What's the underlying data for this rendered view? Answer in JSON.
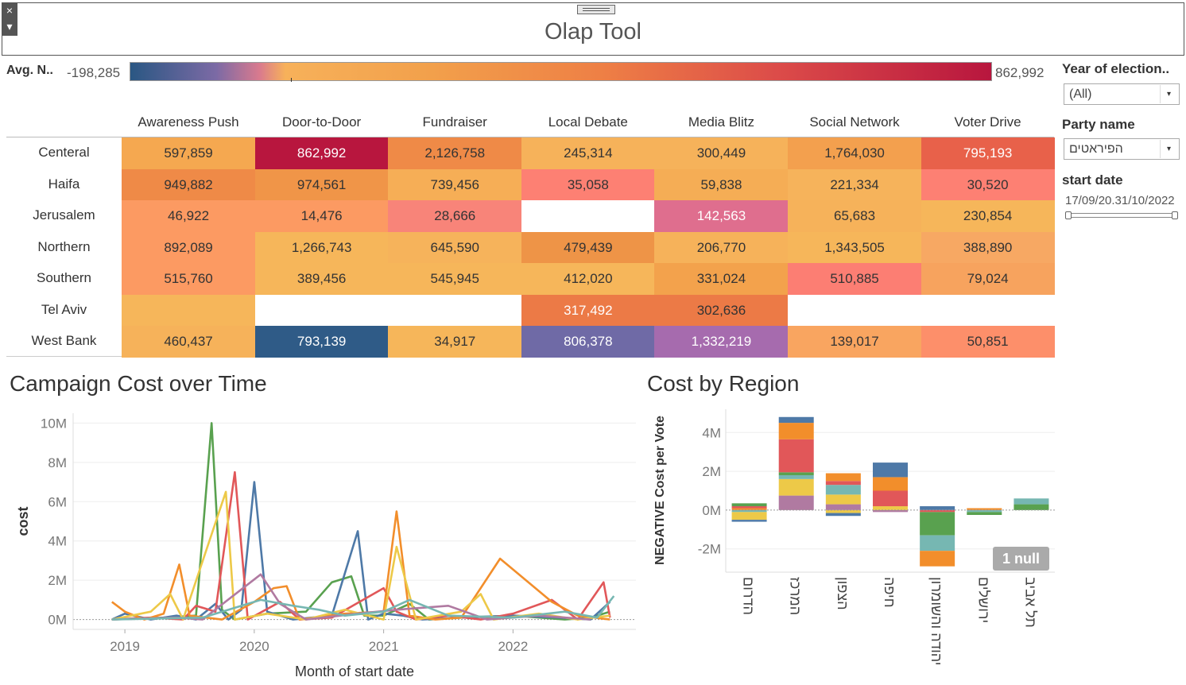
{
  "window": {
    "title": "Olap Tool",
    "close_glyph": "×",
    "menu_glyph": "▾"
  },
  "legend": {
    "label": "Avg. N..",
    "min": "-198,285",
    "max": "862,992"
  },
  "filters": {
    "year": {
      "title": "Year of election..",
      "value": "(All)"
    },
    "party": {
      "title": "Party name",
      "value": "הפיראטים"
    },
    "start_date": {
      "title": "start date",
      "range": "17/09/20.31/10/2022"
    },
    "dropdown_glyph": "▾"
  },
  "heatmap": {
    "columns": [
      "Awareness Push",
      "Door-to-Door",
      "Fundraiser",
      "Local Debate",
      "Media Blitz",
      "Social Network",
      "Voter Drive"
    ],
    "rows": [
      {
        "label": "Centeral",
        "cells": [
          {
            "v": "597,859",
            "c": "#f5a850"
          },
          {
            "v": "862,992",
            "c": "#b8163e",
            "light": true
          },
          {
            "v": "2,126,758",
            "c": "#ef8a47"
          },
          {
            "v": "245,314",
            "c": "#f6b25a"
          },
          {
            "v": "300,449",
            "c": "#f6b25a"
          },
          {
            "v": "1,764,030",
            "c": "#f3a04e"
          },
          {
            "v": "795,193",
            "c": "#e8614a",
            "light": true
          }
        ]
      },
      {
        "label": "Haifa",
        "cells": [
          {
            "v": "949,882",
            "c": "#ef8a47"
          },
          {
            "v": "974,561",
            "c": "#f09548"
          },
          {
            "v": "739,456",
            "c": "#f6ae56"
          },
          {
            "v": "35,058",
            "c": "#fd8073"
          },
          {
            "v": "59,838",
            "c": "#f5ad55"
          },
          {
            "v": "221,334",
            "c": "#f6b35b"
          },
          {
            "v": "30,520",
            "c": "#fd8073"
          }
        ]
      },
      {
        "label": "Jerusalem",
        "cells": [
          {
            "v": "46,922",
            "c": "#fc9a62"
          },
          {
            "v": "14,476",
            "c": "#fc9a62"
          },
          {
            "v": "28,666",
            "c": "#f88479"
          },
          {
            "v": "",
            "c": "#ffffff"
          },
          {
            "v": "142,563",
            "c": "#df6e8e",
            "light": true
          },
          {
            "v": "65,683",
            "c": "#f6b25a"
          },
          {
            "v": "230,854",
            "c": "#f6b65a"
          }
        ]
      },
      {
        "label": "Northern",
        "cells": [
          {
            "v": "892,089",
            "c": "#fc9a62"
          },
          {
            "v": "1,266,743",
            "c": "#f6b65a"
          },
          {
            "v": "645,590",
            "c": "#f6b35b"
          },
          {
            "v": "479,439",
            "c": "#ee9447"
          },
          {
            "v": "206,770",
            "c": "#f6b25a"
          },
          {
            "v": "1,343,505",
            "c": "#f6b65a"
          },
          {
            "v": "388,890",
            "c": "#f7a863"
          }
        ]
      },
      {
        "label": "Southern",
        "cells": [
          {
            "v": "515,760",
            "c": "#fc9a62"
          },
          {
            "v": "389,456",
            "c": "#f6b65a"
          },
          {
            "v": "545,945",
            "c": "#f6b65a"
          },
          {
            "v": "412,020",
            "c": "#f6b65a"
          },
          {
            "v": "331,024",
            "c": "#f3a24c"
          },
          {
            "v": "510,885",
            "c": "#fc7e73"
          },
          {
            "v": "79,024",
            "c": "#f7a35e"
          }
        ]
      },
      {
        "label": "Tel Aviv",
        "cells": [
          {
            "v": "",
            "c": "#f6b65a"
          },
          {
            "v": "",
            "c": "#ffffff"
          },
          {
            "v": "",
            "c": "#ffffff"
          },
          {
            "v": "317,492",
            "c": "#ec7a46",
            "light": true
          },
          {
            "v": "302,636",
            "c": "#ec7a46"
          },
          {
            "v": "",
            "c": "#ffffff"
          },
          {
            "v": "",
            "c": "#ffffff"
          }
        ]
      },
      {
        "label": "West Bank",
        "cells": [
          {
            "v": "460,437",
            "c": "#f6b25a"
          },
          {
            "v": "793,139",
            "c": "#2f5b87",
            "light": true
          },
          {
            "v": "34,917",
            "c": "#f6b65a"
          },
          {
            "v": "806,378",
            "c": "#6f6aa6",
            "light": true
          },
          {
            "v": "1,332,219",
            "c": "#a66bae",
            "light": true
          },
          {
            "v": "139,017",
            "c": "#f9a560"
          },
          {
            "v": "50,851",
            "c": "#fd8f6a"
          }
        ]
      }
    ]
  },
  "chart_data": [
    {
      "type": "line",
      "title": "Campaign Cost over Time",
      "xlabel": "Month of start date",
      "ylabel": "cost",
      "xlim": [
        2018.6,
        2022.95
      ],
      "ylim": [
        -500000,
        10500000
      ],
      "yticks": [
        {
          "v": 0,
          "l": "0M"
        },
        {
          "v": 2000000,
          "l": "2M"
        },
        {
          "v": 4000000,
          "l": "4M"
        },
        {
          "v": 6000000,
          "l": "6M"
        },
        {
          "v": 8000000,
          "l": "8M"
        },
        {
          "v": 10000000,
          "l": "10M"
        }
      ],
      "xticks": [
        {
          "v": 2019,
          "l": "2019"
        },
        {
          "v": 2020,
          "l": "2020"
        },
        {
          "v": 2021,
          "l": "2021"
        },
        {
          "v": 2022,
          "l": "2022"
        }
      ],
      "series": [
        {
          "color": "#59a14f",
          "points": [
            [
              2018.9,
              0
            ],
            [
              2019.3,
              100000
            ],
            [
              2019.55,
              200000
            ],
            [
              2019.67,
              10000000
            ],
            [
              2019.75,
              500000
            ],
            [
              2019.85,
              0
            ],
            [
              2020.1,
              300000
            ],
            [
              2020.4,
              400000
            ],
            [
              2020.6,
              1900000
            ],
            [
              2020.75,
              2200000
            ],
            [
              2020.85,
              200000
            ],
            [
              2021.0,
              200000
            ],
            [
              2021.2,
              800000
            ],
            [
              2021.35,
              0
            ],
            [
              2021.6,
              100000
            ],
            [
              2022.0,
              200000
            ],
            [
              2022.4,
              0
            ],
            [
              2022.6,
              100000
            ],
            [
              2022.75,
              400000
            ]
          ]
        },
        {
          "color": "#4e79a7",
          "points": [
            [
              2018.9,
              0
            ],
            [
              2019.0,
              300000
            ],
            [
              2019.2,
              0
            ],
            [
              2019.4,
              200000
            ],
            [
              2019.55,
              0
            ],
            [
              2019.7,
              800000
            ],
            [
              2019.8,
              0
            ],
            [
              2019.9,
              500000
            ],
            [
              2020.0,
              7000000
            ],
            [
              2020.1,
              400000
            ],
            [
              2020.3,
              0
            ],
            [
              2020.6,
              200000
            ],
            [
              2020.8,
              4500000
            ],
            [
              2020.88,
              0
            ],
            [
              2021.0,
              300000
            ],
            [
              2021.15,
              200000
            ],
            [
              2021.3,
              0
            ],
            [
              2021.6,
              100000
            ],
            [
              2022.0,
              200000
            ],
            [
              2022.35,
              100000
            ],
            [
              2022.6,
              0
            ],
            [
              2022.75,
              900000
            ]
          ]
        },
        {
          "color": "#e15759",
          "points": [
            [
              2018.9,
              0
            ],
            [
              2019.2,
              100000
            ],
            [
              2019.45,
              0
            ],
            [
              2019.55,
              700000
            ],
            [
              2019.7,
              400000
            ],
            [
              2019.85,
              7500000
            ],
            [
              2019.95,
              0
            ],
            [
              2020.2,
              900000
            ],
            [
              2020.35,
              0
            ],
            [
              2020.6,
              100000
            ],
            [
              2021.0,
              1600000
            ],
            [
              2021.1,
              400000
            ],
            [
              2021.25,
              0
            ],
            [
              2021.5,
              200000
            ],
            [
              2021.75,
              0
            ],
            [
              2022.0,
              300000
            ],
            [
              2022.3,
              1000000
            ],
            [
              2022.5,
              0
            ],
            [
              2022.7,
              1900000
            ],
            [
              2022.75,
              100000
            ]
          ]
        },
        {
          "color": "#f28e2b",
          "points": [
            [
              2018.9,
              900000
            ],
            [
              2019.0,
              400000
            ],
            [
              2019.15,
              0
            ],
            [
              2019.3,
              300000
            ],
            [
              2019.42,
              2800000
            ],
            [
              2019.5,
              200000
            ],
            [
              2019.75,
              0
            ],
            [
              2020.0,
              900000
            ],
            [
              2020.15,
              1600000
            ],
            [
              2020.25,
              1700000
            ],
            [
              2020.35,
              0
            ],
            [
              2020.7,
              300000
            ],
            [
              2021.0,
              400000
            ],
            [
              2021.1,
              5500000
            ],
            [
              2021.2,
              200000
            ],
            [
              2021.4,
              0
            ],
            [
              2021.6,
              100000
            ],
            [
              2021.9,
              3100000
            ],
            [
              2022.3,
              900000
            ],
            [
              2022.5,
              200000
            ],
            [
              2022.75,
              0
            ]
          ]
        },
        {
          "color": "#edc948",
          "points": [
            [
              2018.9,
              0
            ],
            [
              2019.2,
              400000
            ],
            [
              2019.35,
              1300000
            ],
            [
              2019.45,
              0
            ],
            [
              2019.78,
              6500000
            ],
            [
              2019.85,
              0
            ],
            [
              2020.1,
              300000
            ],
            [
              2020.4,
              0
            ],
            [
              2020.7,
              500000
            ],
            [
              2021.0,
              0
            ],
            [
              2021.1,
              3700000
            ],
            [
              2021.25,
              0
            ],
            [
              2021.6,
              400000
            ],
            [
              2021.75,
              1300000
            ],
            [
              2021.85,
              0
            ],
            [
              2022.2,
              300000
            ],
            [
              2022.5,
              0
            ],
            [
              2022.75,
              200000
            ]
          ]
        },
        {
          "color": "#b07aa1",
          "points": [
            [
              2018.9,
              0
            ],
            [
              2019.4,
              100000
            ],
            [
              2019.6,
              0
            ],
            [
              2020.05,
              2300000
            ],
            [
              2020.2,
              800000
            ],
            [
              2020.4,
              0
            ],
            [
              2020.8,
              300000
            ],
            [
              2021.1,
              500000
            ],
            [
              2021.5,
              700000
            ],
            [
              2021.8,
              0
            ],
            [
              2022.2,
              200000
            ],
            [
              2022.6,
              0
            ]
          ]
        },
        {
          "color": "#76b7b2",
          "points": [
            [
              2018.9,
              0
            ],
            [
              2019.6,
              100000
            ],
            [
              2020.05,
              1000000
            ],
            [
              2020.3,
              700000
            ],
            [
              2020.5,
              500000
            ],
            [
              2020.7,
              200000
            ],
            [
              2021.0,
              400000
            ],
            [
              2021.2,
              1000000
            ],
            [
              2021.5,
              200000
            ],
            [
              2022.0,
              100000
            ],
            [
              2022.4,
              400000
            ],
            [
              2022.65,
              100000
            ],
            [
              2022.78,
              1200000
            ]
          ]
        }
      ]
    },
    {
      "type": "bar",
      "title": "Cost by Region",
      "ylabel": "NEGATIVE Cost per Vote",
      "ylim": [
        -3200000,
        5200000
      ],
      "yticks": [
        {
          "v": -2000000,
          "l": "-2M"
        },
        {
          "v": 0,
          "l": "0M"
        },
        {
          "v": 2000000,
          "l": "2M"
        },
        {
          "v": 4000000,
          "l": "4M"
        }
      ],
      "categories": [
        "הדרום",
        "המרכז",
        "הצפון",
        "חיפה",
        "יהודה והשומרון",
        "ירושלים",
        "תל אביב"
      ],
      "stacks": [
        [
          {
            "v": 0.1,
            "c": "#f28e2b"
          },
          {
            "v": 0.1,
            "c": "#e15759"
          },
          {
            "v": 0.15,
            "c": "#59a14f"
          },
          {
            "v": -0.1,
            "c": "#76b7b2"
          },
          {
            "v": -0.4,
            "c": "#edc948"
          },
          {
            "v": -0.1,
            "c": "#4e79a7"
          }
        ],
        [
          {
            "v": 0.75,
            "c": "#b07aa1"
          },
          {
            "v": 0.85,
            "c": "#edc948"
          },
          {
            "v": 0.2,
            "c": "#76b7b2"
          },
          {
            "v": 0.15,
            "c": "#59a14f"
          },
          {
            "v": 1.7,
            "c": "#e15759"
          },
          {
            "v": 0.85,
            "c": "#f28e2b"
          },
          {
            "v": 0.3,
            "c": "#4e79a7"
          }
        ],
        [
          {
            "v": 0.3,
            "c": "#b07aa1"
          },
          {
            "v": 0.5,
            "c": "#edc948"
          },
          {
            "v": 0.5,
            "c": "#76b7b2"
          },
          {
            "v": 0.2,
            "c": "#e15759"
          },
          {
            "v": 0.4,
            "c": "#f28e2b"
          },
          {
            "v": -0.15,
            "c": "#edc948"
          },
          {
            "v": -0.15,
            "c": "#4e79a7"
          }
        ],
        [
          {
            "v": 0.2,
            "c": "#edc948"
          },
          {
            "v": 0.8,
            "c": "#e15759"
          },
          {
            "v": 0.7,
            "c": "#f28e2b"
          },
          {
            "v": 0.75,
            "c": "#4e79a7"
          },
          {
            "v": -0.1,
            "c": "#b07aa1"
          }
        ],
        [
          {
            "v": 0.2,
            "c": "#4e79a7"
          },
          {
            "v": -0.1,
            "c": "#e15759"
          },
          {
            "v": -1.2,
            "c": "#59a14f"
          },
          {
            "v": -0.8,
            "c": "#76b7b2"
          },
          {
            "v": -0.8,
            "c": "#f28e2b"
          }
        ],
        [
          {
            "v": 0.1,
            "c": "#f28e2b"
          },
          {
            "v": -0.1,
            "c": "#76b7b2"
          },
          {
            "v": -0.15,
            "c": "#59a14f"
          }
        ],
        [
          {
            "v": 0.3,
            "c": "#59a14f"
          },
          {
            "v": 0.3,
            "c": "#76b7b2"
          }
        ]
      ],
      "null_badge": "1 null"
    }
  ]
}
